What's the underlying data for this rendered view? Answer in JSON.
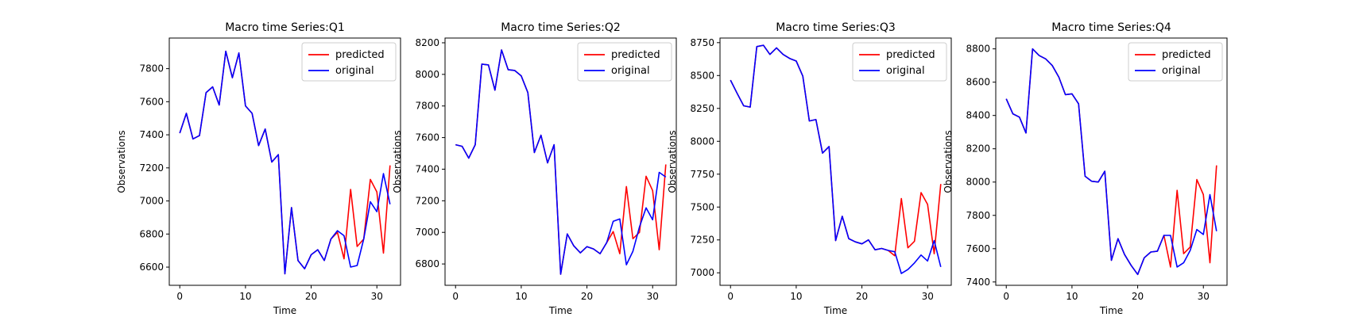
{
  "chart_data": [
    {
      "type": "line",
      "title": "Macro time Series:Q1",
      "xlabel": "Time",
      "ylabel": "Observations",
      "xlim": [
        -1.6,
        33.6
      ],
      "ylim": [
        6490,
        7985
      ],
      "xticks": [
        0,
        10,
        20,
        30
      ],
      "yticks": [
        6600,
        6800,
        7000,
        7200,
        7400,
        7600,
        7800
      ],
      "legend": "top-right",
      "grid": false,
      "x": [
        0,
        1,
        2,
        3,
        4,
        5,
        6,
        7,
        8,
        9,
        10,
        11,
        12,
        13,
        14,
        15,
        16,
        17,
        18,
        19,
        20,
        21,
        22,
        23,
        24,
        25,
        26,
        27,
        28,
        29,
        30,
        31,
        32
      ],
      "series": [
        {
          "name": "predicted",
          "color": "#ff0000",
          "values": [
            7410,
            7530,
            7375,
            7395,
            7655,
            7690,
            7580,
            7905,
            7745,
            7895,
            7575,
            7530,
            7335,
            7435,
            7235,
            7280,
            6560,
            6960,
            6640,
            6590,
            6675,
            6705,
            6640,
            6770,
            6810,
            6650,
            7070,
            6725,
            6770,
            7130,
            7055,
            6685,
            7215
          ]
        },
        {
          "name": "original",
          "color": "#0000ff",
          "values": [
            7410,
            7530,
            7375,
            7395,
            7655,
            7690,
            7580,
            7905,
            7745,
            7895,
            7575,
            7530,
            7335,
            7435,
            7235,
            7280,
            6560,
            6960,
            6640,
            6590,
            6675,
            6705,
            6640,
            6770,
            6820,
            6790,
            6600,
            6610,
            6770,
            6995,
            6935,
            7165,
            6980
          ]
        }
      ]
    },
    {
      "type": "line",
      "title": "Macro time Series:Q2",
      "xlabel": "Time",
      "ylabel": "Observations",
      "xlim": [
        -1.6,
        33.6
      ],
      "ylim": [
        6665,
        8230
      ],
      "xticks": [
        0,
        10,
        20,
        30
      ],
      "yticks": [
        6800,
        7000,
        7200,
        7400,
        7600,
        7800,
        8000,
        8200
      ],
      "legend": "top-right",
      "grid": false,
      "x": [
        0,
        1,
        2,
        3,
        4,
        5,
        6,
        7,
        8,
        9,
        10,
        11,
        12,
        13,
        14,
        15,
        16,
        17,
        18,
        19,
        20,
        21,
        22,
        23,
        24,
        25,
        26,
        27,
        28,
        29,
        30,
        31,
        32
      ],
      "series": [
        {
          "name": "predicted",
          "color": "#ff0000",
          "values": [
            7555,
            7545,
            7470,
            7555,
            8065,
            8060,
            7900,
            8155,
            8030,
            8025,
            7990,
            7885,
            7505,
            7615,
            7440,
            7555,
            6735,
            6990,
            6915,
            6870,
            6910,
            6895,
            6865,
            6935,
            7005,
            6865,
            7290,
            6960,
            7000,
            7355,
            7265,
            6890,
            7430
          ]
        },
        {
          "name": "original",
          "color": "#0000ff",
          "values": [
            7555,
            7545,
            7470,
            7555,
            8065,
            8060,
            7900,
            8155,
            8030,
            8025,
            7990,
            7885,
            7505,
            7615,
            7440,
            7555,
            6735,
            6990,
            6915,
            6870,
            6910,
            6895,
            6865,
            6935,
            7070,
            7085,
            6795,
            6880,
            7035,
            7155,
            7080,
            7380,
            7350
          ]
        }
      ]
    },
    {
      "type": "line",
      "title": "Macro time Series:Q3",
      "xlabel": "Time",
      "ylabel": "Observations",
      "xlim": [
        -1.6,
        33.6
      ],
      "ylim": [
        6905,
        8785
      ],
      "xticks": [
        0,
        10,
        20,
        30
      ],
      "yticks": [
        7000,
        7250,
        7500,
        7750,
        8000,
        8250,
        8500,
        8750
      ],
      "legend": "top-right",
      "grid": false,
      "x": [
        0,
        1,
        2,
        3,
        4,
        5,
        6,
        7,
        8,
        9,
        10,
        11,
        12,
        13,
        14,
        15,
        16,
        17,
        18,
        19,
        20,
        21,
        22,
        23,
        24,
        25,
        26,
        27,
        28,
        29,
        30,
        31,
        32
      ],
      "series": [
        {
          "name": "predicted",
          "color": "#ff0000",
          "values": [
            8465,
            8365,
            8270,
            8260,
            8720,
            8730,
            8660,
            8710,
            8660,
            8630,
            8610,
            8495,
            8155,
            8165,
            7910,
            7960,
            7245,
            7430,
            7260,
            7235,
            7220,
            7250,
            7175,
            7185,
            7170,
            7130,
            7565,
            7190,
            7240,
            7610,
            7520,
            7145,
            7675
          ]
        },
        {
          "name": "original",
          "color": "#0000ff",
          "values": [
            8465,
            8365,
            8270,
            8260,
            8720,
            8730,
            8660,
            8710,
            8660,
            8630,
            8610,
            8495,
            8155,
            8165,
            7910,
            7960,
            7245,
            7430,
            7260,
            7235,
            7220,
            7250,
            7175,
            7185,
            7170,
            7160,
            6995,
            7025,
            7075,
            7135,
            7090,
            7245,
            7045
          ]
        }
      ]
    },
    {
      "type": "line",
      "title": "Macro time Series:Q4",
      "xlabel": "Time",
      "ylabel": "Observations",
      "xlim": [
        -1.6,
        33.6
      ],
      "ylim": [
        7380,
        8865
      ],
      "xticks": [
        0,
        10,
        20,
        30
      ],
      "yticks": [
        7400,
        7600,
        7800,
        8000,
        8200,
        8400,
        8600,
        8800
      ],
      "legend": "top-right",
      "grid": false,
      "x": [
        0,
        1,
        2,
        3,
        4,
        5,
        6,
        7,
        8,
        9,
        10,
        11,
        12,
        13,
        14,
        15,
        16,
        17,
        18,
        19,
        20,
        21,
        22,
        23,
        24,
        25,
        26,
        27,
        28,
        29,
        30,
        31,
        32
      ],
      "series": [
        {
          "name": "predicted",
          "color": "#ff0000",
          "values": [
            8500,
            8410,
            8390,
            8295,
            8800,
            8760,
            8740,
            8700,
            8630,
            8525,
            8530,
            8470,
            8035,
            8005,
            8000,
            8065,
            7530,
            7660,
            7565,
            7500,
            7445,
            7545,
            7580,
            7585,
            7680,
            7490,
            7950,
            7570,
            7610,
            8015,
            7925,
            7515,
            8100
          ]
        },
        {
          "name": "original",
          "color": "#0000ff",
          "values": [
            8500,
            8410,
            8390,
            8295,
            8800,
            8760,
            8740,
            8700,
            8630,
            8525,
            8530,
            8470,
            8035,
            8005,
            8000,
            8065,
            7530,
            7660,
            7565,
            7500,
            7445,
            7545,
            7580,
            7585,
            7680,
            7680,
            7490,
            7515,
            7590,
            7715,
            7685,
            7925,
            7705
          ]
        }
      ]
    }
  ]
}
